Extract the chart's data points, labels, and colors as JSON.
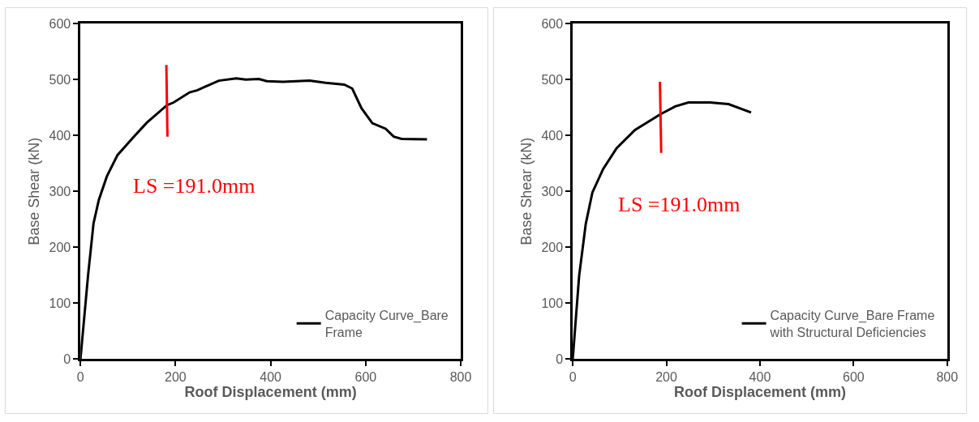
{
  "chart_data": [
    {
      "type": "line",
      "xlabel": "Roof Displacement (mm)",
      "ylabel": "Base Shear (kN)",
      "xlim": [
        0,
        800
      ],
      "xticks": [
        0,
        200,
        400,
        600,
        800
      ],
      "ylim": [
        0,
        600
      ],
      "yticks": [
        0,
        100,
        200,
        300,
        400,
        500,
        600
      ],
      "legend": "bottom right",
      "marker": "none",
      "line_style": "solid",
      "series": [
        {
          "name": "Capacity Curve_Bare Frame",
          "color": "#000000",
          "x": [
            0,
            16,
            27.5,
            38.7,
            55.6,
            78,
            111.6,
            139.7,
            181.8,
            196,
            229.5,
            246,
            291,
            327.8,
            347.5,
            375.5,
            392,
            426,
            482,
            516,
            555,
            571.7,
            591,
            614,
            642,
            659,
            675.6,
            729
          ],
          "values": [
            0,
            150,
            243,
            285,
            327,
            365,
            397,
            423,
            454,
            459,
            477,
            481,
            498,
            502,
            500,
            501,
            497,
            496,
            498,
            494,
            491,
            484,
            449,
            422,
            412,
            398,
            394,
            393
          ]
        },
        {
          "color": "#ff0000",
          "x": [
            180.7,
            183
          ],
          "values": [
            526,
            398
          ]
        }
      ],
      "annotations": [
        "LS =191.0mm"
      ]
    },
    {
      "type": "line",
      "xlabel": "Roof Displacement (mm)",
      "ylabel": "Base Shear (kN)",
      "xlim": [
        0,
        800
      ],
      "xticks": [
        0,
        200,
        400,
        600,
        800
      ],
      "ylim": [
        0,
        600
      ],
      "yticks": [
        0,
        100,
        200,
        300,
        400,
        500,
        600
      ],
      "legend": "bottom right",
      "marker": "none",
      "line_style": "solid",
      "series": [
        {
          "name": "Capacity Curve_Bare Frame with Structural Deficiencies",
          "color": "#000000",
          "x": [
            0,
            13.7,
            27.9,
            42,
            65,
            93.5,
            133,
            187.5,
            219,
            247,
            293,
            332.8,
            381
          ],
          "values": [
            0,
            149,
            242,
            298,
            340,
            377,
            410,
            438,
            452,
            459,
            459,
            456,
            441
          ]
        },
        {
          "color": "#ff0000",
          "x": [
            186.3,
            189
          ],
          "values": [
            496,
            369
          ]
        }
      ],
      "annotations": [
        "LS =191.0mm"
      ]
    }
  ]
}
